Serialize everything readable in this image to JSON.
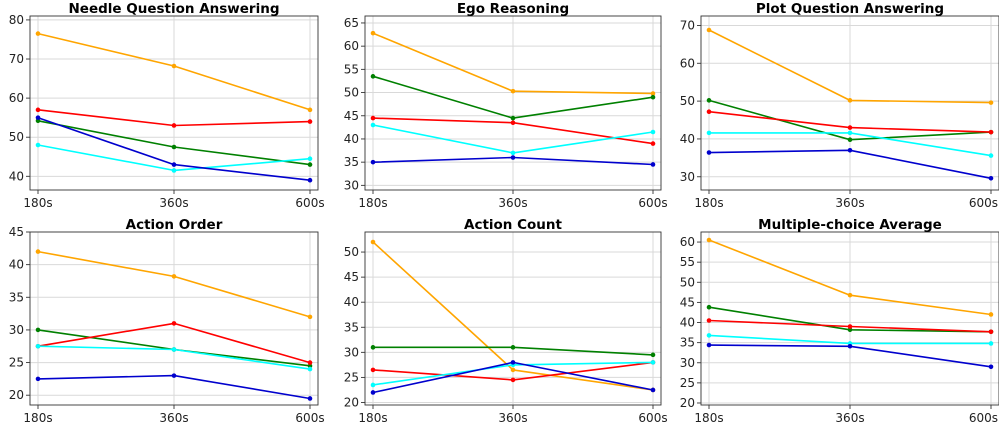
{
  "chart_data": [
    {
      "type": "line",
      "title": "Needle Question Answering",
      "x": [
        "180s",
        "360s",
        "600s"
      ],
      "ylim": [
        36.5,
        81
      ],
      "yticks": [
        40,
        50,
        60,
        70,
        80
      ],
      "grid": true,
      "series": [
        {
          "color": "#ffa500",
          "values": [
            76.5,
            68.2,
            57.0
          ]
        },
        {
          "color": "#ff0000",
          "values": [
            57.0,
            53.0,
            54.0
          ]
        },
        {
          "color": "#008000",
          "values": [
            54.2,
            47.5,
            43.0
          ]
        },
        {
          "color": "#00ffff",
          "values": [
            48.0,
            41.5,
            44.5
          ]
        },
        {
          "color": "#0000cd",
          "values": [
            55.0,
            43.0,
            39.0
          ]
        }
      ]
    },
    {
      "type": "line",
      "title": "Ego Reasoning",
      "x": [
        "180s",
        "360s",
        "600s"
      ],
      "ylim": [
        29,
        66.5
      ],
      "yticks": [
        30,
        35,
        40,
        45,
        50,
        55,
        60,
        65
      ],
      "grid": true,
      "series": [
        {
          "color": "#ffa500",
          "values": [
            62.8,
            50.3,
            49.8
          ]
        },
        {
          "color": "#008000",
          "values": [
            53.5,
            44.5,
            49.0
          ]
        },
        {
          "color": "#ff0000",
          "values": [
            44.5,
            43.5,
            39.0
          ]
        },
        {
          "color": "#00ffff",
          "values": [
            43.0,
            37.0,
            41.5
          ]
        },
        {
          "color": "#0000cd",
          "values": [
            35.0,
            36.0,
            34.5
          ]
        }
      ]
    },
    {
      "type": "line",
      "title": "Plot Question Answering",
      "x": [
        "180s",
        "360s",
        "600s"
      ],
      "ylim": [
        26.5,
        72.5
      ],
      "yticks": [
        30,
        40,
        50,
        60,
        70
      ],
      "grid": true,
      "series": [
        {
          "color": "#ffa500",
          "values": [
            68.8,
            50.2,
            49.6
          ]
        },
        {
          "color": "#008000",
          "values": [
            50.2,
            39.8,
            41.8
          ]
        },
        {
          "color": "#ff0000",
          "values": [
            47.2,
            43.0,
            41.8
          ]
        },
        {
          "color": "#00ffff",
          "values": [
            41.6,
            41.6,
            35.6
          ]
        },
        {
          "color": "#0000cd",
          "values": [
            36.4,
            37.0,
            29.6
          ]
        }
      ]
    },
    {
      "type": "line",
      "title": "Action Order",
      "x": [
        "180s",
        "360s",
        "600s"
      ],
      "ylim": [
        18.5,
        45
      ],
      "yticks": [
        20,
        25,
        30,
        35,
        40,
        45
      ],
      "grid": true,
      "series": [
        {
          "color": "#ffa500",
          "values": [
            42.0,
            38.2,
            32.0
          ]
        },
        {
          "color": "#008000",
          "values": [
            30.0,
            27.0,
            24.5
          ]
        },
        {
          "color": "#ff0000",
          "values": [
            27.5,
            31.0,
            25.0
          ]
        },
        {
          "color": "#00ffff",
          "values": [
            27.5,
            27.0,
            24.0
          ]
        },
        {
          "color": "#0000cd",
          "values": [
            22.5,
            23.0,
            19.5
          ]
        }
      ]
    },
    {
      "type": "line",
      "title": "Action Count",
      "x": [
        "180s",
        "360s",
        "600s"
      ],
      "ylim": [
        19.5,
        54
      ],
      "yticks": [
        20,
        25,
        30,
        35,
        40,
        45,
        50
      ],
      "grid": true,
      "series": [
        {
          "color": "#ffa500",
          "values": [
            52.0,
            26.5,
            22.5
          ]
        },
        {
          "color": "#008000",
          "values": [
            31.0,
            31.0,
            29.5
          ]
        },
        {
          "color": "#ff0000",
          "values": [
            26.5,
            24.5,
            28.0
          ]
        },
        {
          "color": "#00ffff",
          "values": [
            23.5,
            27.5,
            28.0
          ]
        },
        {
          "color": "#0000cd",
          "values": [
            22.0,
            28.0,
            22.5
          ]
        }
      ]
    },
    {
      "type": "line",
      "title": "Multiple-choice Average",
      "x": [
        "180s",
        "360s",
        "600s"
      ],
      "ylim": [
        19.5,
        62.5
      ],
      "yticks": [
        20,
        25,
        30,
        35,
        40,
        45,
        50,
        55,
        60
      ],
      "grid": true,
      "series": [
        {
          "color": "#ffa500",
          "values": [
            60.5,
            46.8,
            42.0
          ]
        },
        {
          "color": "#008000",
          "values": [
            43.8,
            38.2,
            37.7
          ]
        },
        {
          "color": "#ff0000",
          "values": [
            40.5,
            39.0,
            37.7
          ]
        },
        {
          "color": "#00ffff",
          "values": [
            36.8,
            34.8,
            34.8
          ]
        },
        {
          "color": "#0000cd",
          "values": [
            34.4,
            34.1,
            29.0
          ]
        }
      ]
    }
  ]
}
